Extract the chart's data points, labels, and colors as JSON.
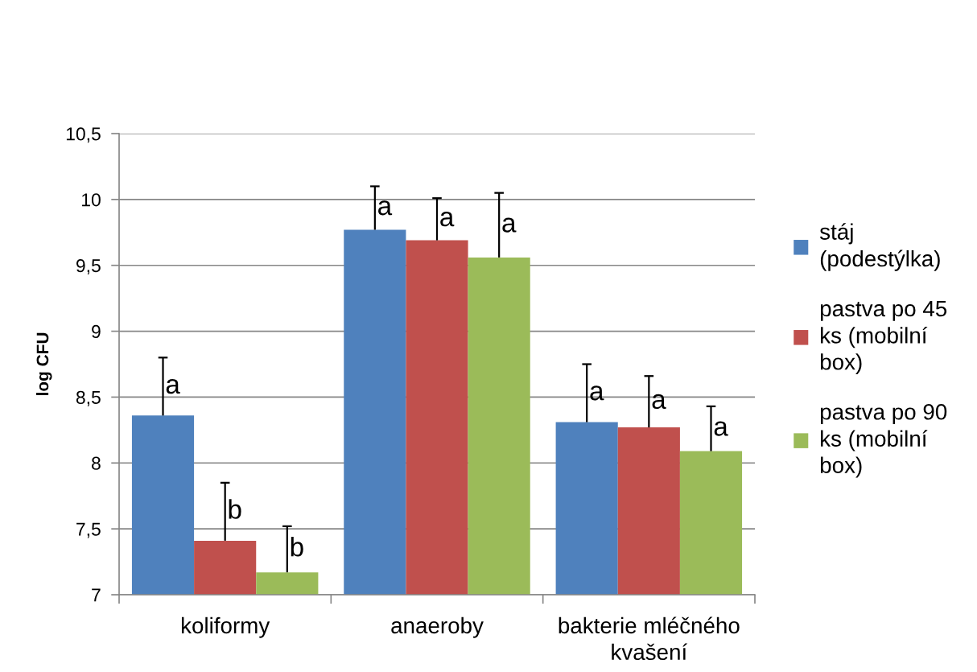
{
  "chart_data": {
    "type": "bar",
    "categories": [
      "koliformy",
      "anaeroby",
      "bakterie mléčného kvašení"
    ],
    "ylabel": "log CFU",
    "series": [
      {
        "name": "stáj (podestýlka)",
        "color": "#4f81bd",
        "values": [
          8.36,
          9.77,
          8.31
        ],
        "errors": [
          [
            8.36,
            8.8
          ],
          [
            9.77,
            10.1
          ],
          [
            8.31,
            8.75
          ]
        ],
        "value_labels": [
          "a",
          "a",
          "a"
        ]
      },
      {
        "name": "pastva po 45 ks (mobilní box)",
        "color": "#c0504d",
        "values": [
          7.41,
          9.69,
          8.27
        ],
        "errors": [
          [
            7.41,
            7.85
          ],
          [
            9.69,
            10.01
          ],
          [
            8.27,
            8.66
          ]
        ],
        "value_labels": [
          "b",
          "a",
          "a"
        ]
      },
      {
        "name": "pastva po 90 ks (mobilní box)",
        "color": "#9bbb59",
        "values": [
          7.17,
          9.56,
          8.09
        ],
        "errors": [
          [
            7.17,
            7.52
          ],
          [
            9.56,
            10.05
          ],
          [
            8.09,
            8.43
          ]
        ],
        "value_labels": [
          "b",
          "a",
          "a"
        ]
      }
    ],
    "ylim": [
      7,
      10.5
    ],
    "yticks": [
      7,
      {
        "value": 7.5,
        "label": "7,5"
      },
      8,
      {
        "value": 8.5,
        "label": "8,5"
      },
      9,
      {
        "value": 9.5,
        "label": "9,5"
      },
      10,
      {
        "value": 10.5,
        "label": "10,5"
      }
    ],
    "grid": "y",
    "legend": "right"
  }
}
